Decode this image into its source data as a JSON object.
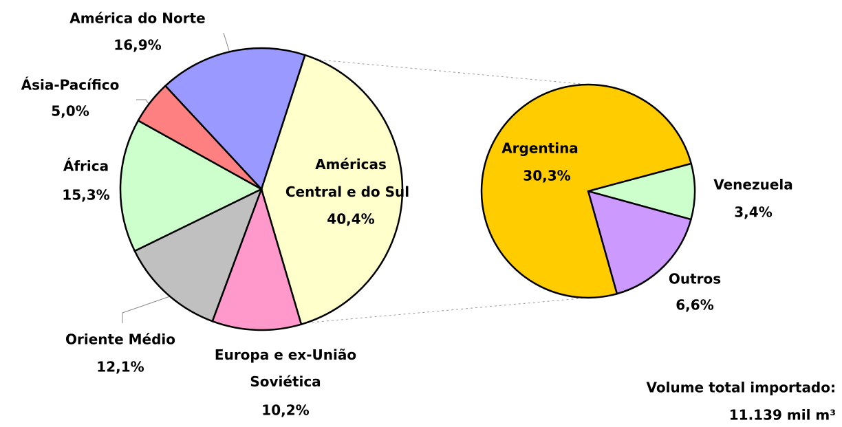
{
  "chart_data": [
    {
      "type": "pie",
      "categories": [
        "Américas Central e do Sul",
        "Europa e ex-União Soviética",
        "Oriente Médio",
        "África",
        "Ásia-Pacífico",
        "América do Norte"
      ],
      "values": [
        40.4,
        10.2,
        12.1,
        15.3,
        5.0,
        16.9
      ],
      "value_labels": [
        "40,4%",
        "10,2%",
        "12,1%",
        "15,3%",
        "5,0%",
        "16,9%"
      ],
      "colors": [
        "#ffffcc",
        "#ff99cc",
        "#c0c0c0",
        "#ccffcc",
        "#ff8080",
        "#9999ff"
      ]
    },
    {
      "type": "pie",
      "categories": [
        "Venezuela",
        "Outros",
        "Argentina"
      ],
      "values": [
        3.4,
        6.6,
        30.3
      ],
      "value_labels": [
        "3,4%",
        "6,6%",
        "30,3%"
      ],
      "colors": [
        "#ccffcc",
        "#cc99ff",
        "#ffcc00"
      ]
    }
  ],
  "annotations": [
    "Volume total importado:",
    "11.139 mil m³"
  ]
}
